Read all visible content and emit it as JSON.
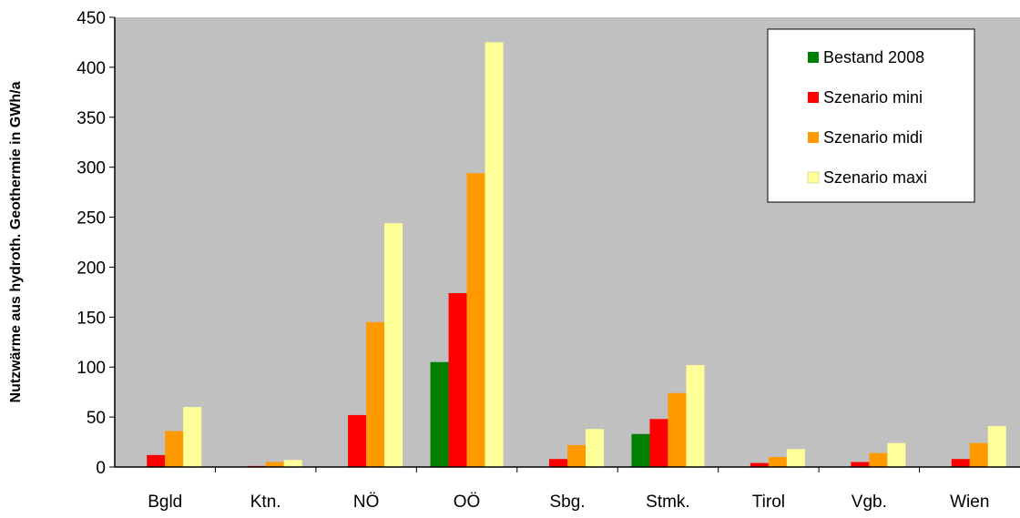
{
  "chart_data": {
    "type": "bar",
    "title": "",
    "xlabel": "",
    "ylabel": "Nutzwärme aus hydroth. Geothermie in GWh/a",
    "ylim": [
      0,
      450
    ],
    "yticks": [
      0,
      50,
      100,
      150,
      200,
      250,
      300,
      350,
      400,
      450
    ],
    "grid": false,
    "legend_position": "top-right",
    "categories": [
      "Bgld",
      "Ktn.",
      "NÖ",
      "OÖ",
      "Sbg.",
      "Stmk.",
      "Tirol",
      "Vgb.",
      "Wien"
    ],
    "series": [
      {
        "name": "Bestand 2008",
        "color": "#008000",
        "values": [
          0,
          0,
          0,
          105,
          0,
          33,
          0,
          0,
          0
        ]
      },
      {
        "name": "Szenario mini",
        "color": "#ff0000",
        "values": [
          12,
          1,
          52,
          174,
          8,
          48,
          4,
          5,
          8
        ]
      },
      {
        "name": "Szenario midi",
        "color": "#ff9900",
        "values": [
          36,
          5,
          145,
          294,
          22,
          74,
          10,
          14,
          24
        ]
      },
      {
        "name": "Szenario maxi",
        "color": "#ffff99",
        "values": [
          60,
          7,
          244,
          425,
          38,
          102,
          18,
          24,
          41
        ]
      }
    ],
    "plot_background": "#c0c0c0"
  }
}
